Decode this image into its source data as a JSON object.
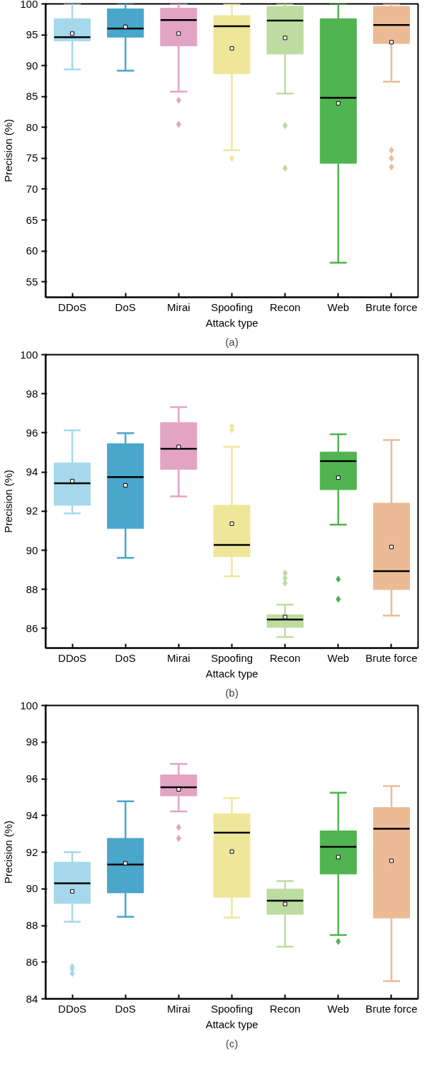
{
  "chart_data": [
    {
      "type": "box",
      "categories": [
        "DDoS",
        "DoS",
        "Mirai",
        "Spoofing",
        "Recon",
        "Web",
        "Brute force"
      ],
      "xlabel": "Attack type",
      "ylabel": "Precision (%)",
      "ylim": [
        52.5,
        100
      ],
      "yticks": [
        55,
        60,
        65,
        70,
        75,
        80,
        85,
        90,
        95,
        100
      ],
      "annotations": [
        "(a)"
      ],
      "colors": [
        "#a6d8ec",
        "#4aa6cb",
        "#e2a3c4",
        "#eee79a",
        "#bddc9f",
        "#50b450",
        "#ecbb96"
      ],
      "boxes": [
        {
          "low": 89.4,
          "q1": 94.0,
          "median": 94.6,
          "q3": 97.6,
          "high": 100,
          "mean": 95.2
        },
        {
          "low": 89.2,
          "q1": 94.6,
          "median": 96.0,
          "q3": 99.2,
          "high": 100,
          "mean": 96.3
        },
        {
          "low": 85.8,
          "q1": 93.2,
          "median": 97.4,
          "q3": 99.3,
          "high": 100,
          "mean": 95.2,
          "outliers": [
            84.4,
            80.5
          ]
        },
        {
          "low": 76.3,
          "q1": 88.7,
          "median": 96.4,
          "q3": 98.1,
          "high": 99.9,
          "mean": 92.8,
          "outliers": [
            75.0
          ]
        },
        {
          "low": 85.5,
          "q1": 91.9,
          "median": 97.3,
          "q3": 99.6,
          "high": 100,
          "mean": 94.5,
          "outliers": [
            80.3,
            73.4
          ]
        },
        {
          "low": 58.1,
          "q1": 74.2,
          "median": 84.8,
          "q3": 97.6,
          "high": 100,
          "mean": 83.9
        },
        {
          "low": 87.4,
          "q1": 93.6,
          "median": 96.6,
          "q3": 99.6,
          "high": 100,
          "mean": 93.8,
          "outliers": [
            76.3,
            75.0,
            73.6
          ]
        }
      ]
    },
    {
      "type": "box",
      "categories": [
        "DDoS",
        "DoS",
        "Mirai",
        "Spoofing",
        "Recon",
        "Web",
        "Brute force"
      ],
      "xlabel": "Attack type",
      "ylabel": "Precision (%)",
      "ylim": [
        85,
        100
      ],
      "yticks": [
        86,
        88,
        90,
        92,
        94,
        96,
        98,
        100
      ],
      "annotations": [
        "(b)"
      ],
      "colors": [
        "#a6d8ec",
        "#4aa6cb",
        "#e2a3c4",
        "#eee79a",
        "#bddc9f",
        "#50b450",
        "#ecbb96"
      ],
      "boxes": [
        {
          "low": 91.88,
          "q1": 92.3,
          "median": 93.42,
          "q3": 94.47,
          "high": 96.13,
          "mean": 93.54
        },
        {
          "low": 89.61,
          "q1": 91.11,
          "median": 93.74,
          "q3": 95.45,
          "high": 95.99,
          "mean": 93.32
        },
        {
          "low": 92.75,
          "q1": 94.14,
          "median": 95.19,
          "q3": 96.53,
          "high": 97.32,
          "mean": 95.29
        },
        {
          "low": 88.67,
          "q1": 89.67,
          "median": 90.27,
          "q3": 92.3,
          "high": 95.29,
          "mean": 91.36,
          "outliers": [
            96.33,
            96.15
          ]
        },
        {
          "low": 85.56,
          "q1": 86.06,
          "median": 86.46,
          "q3": 86.7,
          "high": 87.22,
          "mean": 86.59,
          "outliers": [
            88.83,
            88.57,
            88.32
          ]
        },
        {
          "low": 91.31,
          "q1": 93.1,
          "median": 94.56,
          "q3": 95.02,
          "high": 95.93,
          "mean": 93.71,
          "outliers": [
            88.52,
            87.5
          ]
        },
        {
          "low": 86.66,
          "q1": 87.99,
          "median": 88.93,
          "q3": 92.41,
          "high": 95.63,
          "mean": 90.17
        }
      ]
    },
    {
      "type": "box",
      "categories": [
        "DDoS",
        "DoS",
        "Mirai",
        "Spoofing",
        "Recon",
        "Web",
        "Brute force"
      ],
      "xlabel": "Attack type",
      "ylabel": "Precision (%)",
      "ylim": [
        84,
        100
      ],
      "yticks": [
        84,
        86,
        88,
        90,
        92,
        94,
        96,
        98,
        100
      ],
      "annotations": [
        "(c)"
      ],
      "colors": [
        "#a6d8ec",
        "#4aa6cb",
        "#e2a3c4",
        "#eee79a",
        "#bddc9f",
        "#50b450",
        "#ecbb96"
      ],
      "boxes": [
        {
          "low": 88.2,
          "q1": 89.2,
          "median": 90.3,
          "q3": 91.45,
          "high": 92.0,
          "mean": 89.86,
          "outliers": [
            85.75,
            85.63,
            85.38
          ]
        },
        {
          "low": 88.47,
          "q1": 89.78,
          "median": 91.32,
          "q3": 92.75,
          "high": 94.77,
          "mean": 91.39
        },
        {
          "low": 94.22,
          "q1": 95.07,
          "median": 95.54,
          "q3": 96.21,
          "high": 96.81,
          "mean": 95.42,
          "outliers": [
            93.35,
            92.75
          ]
        },
        {
          "low": 88.43,
          "q1": 89.54,
          "median": 93.06,
          "q3": 94.1,
          "high": 94.95,
          "mean": 92.03
        },
        {
          "low": 86.84,
          "q1": 88.61,
          "median": 89.35,
          "q3": 89.98,
          "high": 90.42,
          "mean": 89.17
        },
        {
          "low": 87.48,
          "q1": 90.81,
          "median": 92.29,
          "q3": 93.16,
          "high": 95.24,
          "mean": 91.73,
          "outliers": [
            87.13
          ]
        },
        {
          "low": 84.97,
          "q1": 88.41,
          "median": 93.28,
          "q3": 94.43,
          "high": 95.6,
          "mean": 91.53
        }
      ]
    }
  ]
}
